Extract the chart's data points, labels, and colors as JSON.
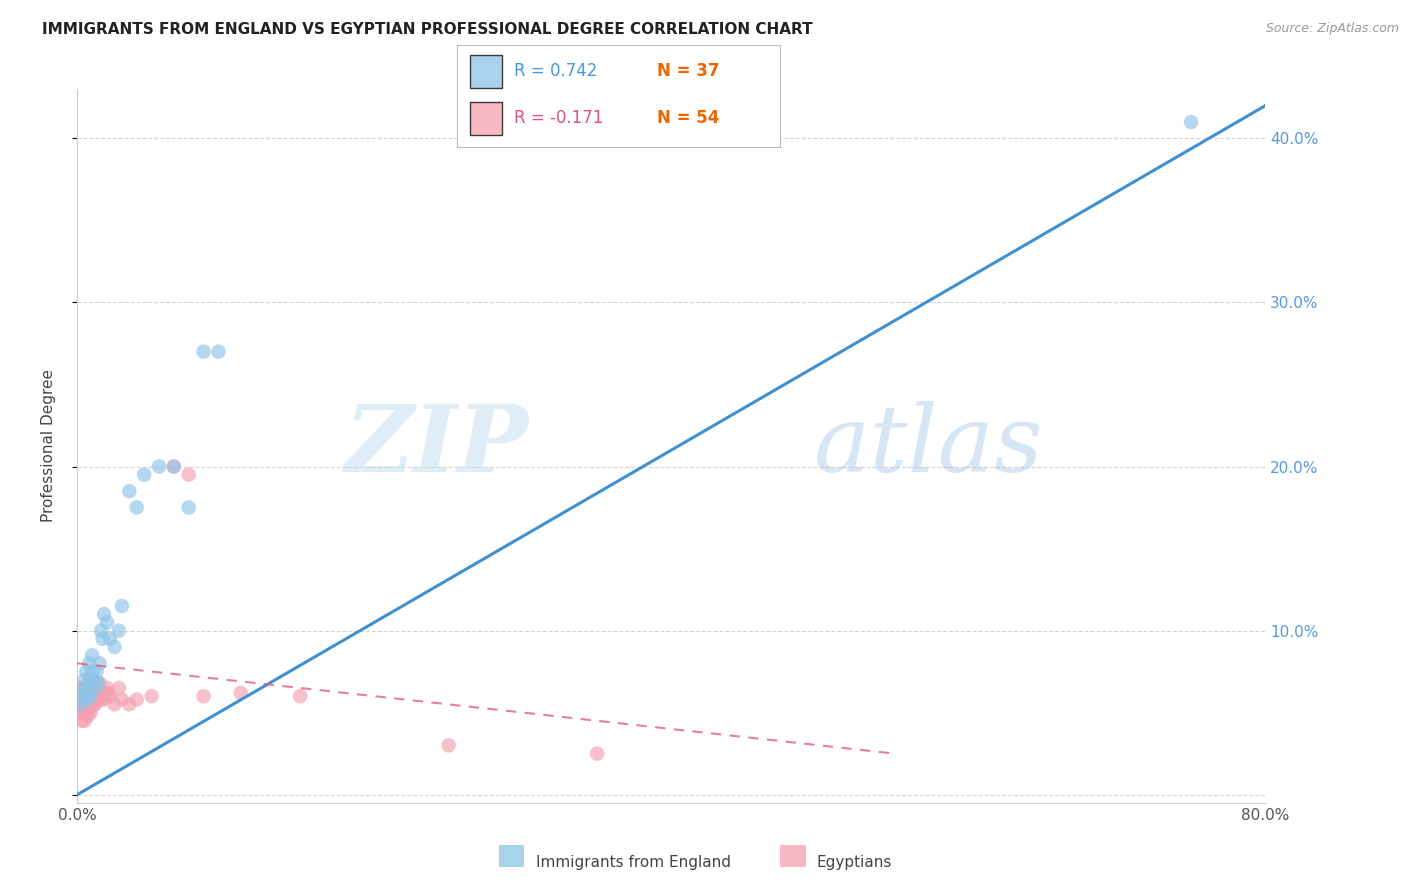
{
  "title": "IMMIGRANTS FROM ENGLAND VS EGYPTIAN PROFESSIONAL DEGREE CORRELATION CHART",
  "source": "Source: ZipAtlas.com",
  "ylabel": "Professional Degree",
  "xlim": [
    0.0,
    0.8
  ],
  "ylim": [
    -0.005,
    0.43
  ],
  "blue_R": 0.742,
  "blue_N": 37,
  "pink_R": -0.171,
  "pink_N": 54,
  "watermark_ZIP": "ZIP",
  "watermark_atlas": "atlas",
  "background_color": "#ffffff",
  "grid_color": "#d0d0d0",
  "blue_color": "#8ec4e8",
  "pink_color": "#f4a0b0",
  "blue_line_color": "#4090d0",
  "pink_line_color": "#e06080",
  "blue_scatter_x": [
    0.002,
    0.003,
    0.004,
    0.005,
    0.005,
    0.006,
    0.006,
    0.007,
    0.007,
    0.008,
    0.008,
    0.009,
    0.009,
    0.01,
    0.01,
    0.011,
    0.012,
    0.013,
    0.014,
    0.015,
    0.016,
    0.017,
    0.018,
    0.02,
    0.022,
    0.025,
    0.028,
    0.03,
    0.035,
    0.04,
    0.045,
    0.055,
    0.065,
    0.075,
    0.085,
    0.095,
    0.75
  ],
  "blue_scatter_y": [
    0.055,
    0.06,
    0.06,
    0.065,
    0.07,
    0.058,
    0.075,
    0.06,
    0.065,
    0.07,
    0.08,
    0.068,
    0.06,
    0.075,
    0.085,
    0.07,
    0.065,
    0.075,
    0.068,
    0.08,
    0.1,
    0.095,
    0.11,
    0.105,
    0.095,
    0.09,
    0.1,
    0.115,
    0.185,
    0.175,
    0.195,
    0.2,
    0.2,
    0.175,
    0.27,
    0.27,
    0.41
  ],
  "pink_scatter_x": [
    0.001,
    0.002,
    0.002,
    0.003,
    0.003,
    0.003,
    0.004,
    0.004,
    0.005,
    0.005,
    0.005,
    0.006,
    0.006,
    0.006,
    0.007,
    0.007,
    0.007,
    0.008,
    0.008,
    0.008,
    0.009,
    0.009,
    0.01,
    0.01,
    0.01,
    0.011,
    0.011,
    0.012,
    0.012,
    0.013,
    0.013,
    0.014,
    0.015,
    0.015,
    0.016,
    0.017,
    0.018,
    0.019,
    0.02,
    0.021,
    0.022,
    0.025,
    0.028,
    0.03,
    0.035,
    0.04,
    0.05,
    0.065,
    0.075,
    0.085,
    0.11,
    0.15,
    0.25,
    0.35
  ],
  "pink_scatter_y": [
    0.055,
    0.05,
    0.06,
    0.045,
    0.055,
    0.065,
    0.05,
    0.065,
    0.045,
    0.055,
    0.06,
    0.05,
    0.055,
    0.065,
    0.048,
    0.055,
    0.06,
    0.052,
    0.058,
    0.065,
    0.05,
    0.058,
    0.055,
    0.06,
    0.068,
    0.055,
    0.065,
    0.055,
    0.06,
    0.058,
    0.068,
    0.065,
    0.06,
    0.068,
    0.058,
    0.062,
    0.058,
    0.062,
    0.065,
    0.062,
    0.06,
    0.055,
    0.065,
    0.058,
    0.055,
    0.058,
    0.06,
    0.2,
    0.195,
    0.06,
    0.062,
    0.06,
    0.03,
    0.025
  ],
  "blue_line_x": [
    0.0,
    0.8
  ],
  "blue_line_y": [
    0.0,
    0.42
  ],
  "pink_line_x": [
    0.0,
    0.55
  ],
  "pink_line_y": [
    0.08,
    0.025
  ],
  "legend_entry_label_blue": "Immigrants from England",
  "legend_entry_label_pink": "Egyptians"
}
